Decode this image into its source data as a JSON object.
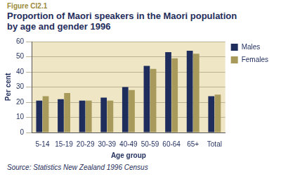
{
  "chart_data": {
    "type": "bar",
    "figure": "Figure CI2.1",
    "title": "Proportion of Maori speakers in the Maori population by age and gender 1996",
    "source": "Source: Statistics New Zealand 1996 Census",
    "x_label": "Age group",
    "y_label": "Per cent",
    "categories": [
      "5-14",
      "15-19",
      "20-29",
      "30-39",
      "40-49",
      "50-59",
      "60-64",
      "65+",
      "Total"
    ],
    "series": [
      {
        "name": "Males",
        "color": "#1f2d5c",
        "values": [
          21,
          22,
          21,
          23,
          30,
          44,
          53,
          54,
          24
        ]
      },
      {
        "name": "Females",
        "color": "#a89a5a",
        "values": [
          24,
          26,
          21,
          21,
          28,
          42,
          49,
          52,
          25
        ]
      }
    ],
    "ylim": [
      0,
      60
    ],
    "yticks": [
      0,
      10,
      20,
      30,
      40,
      50,
      60
    ],
    "grid": true,
    "legend": "right"
  }
}
